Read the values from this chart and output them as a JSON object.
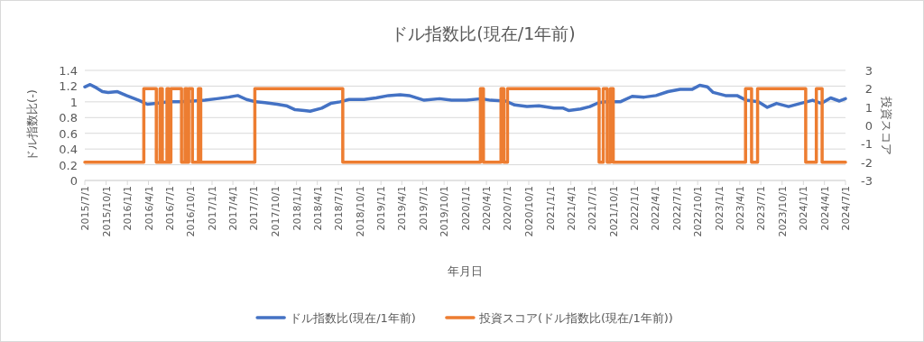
{
  "chart_data": {
    "type": "line",
    "title": "ドル指数比(現在/1年前)",
    "xlabel": "年月日",
    "ylabel": "ドル指数比(-)",
    "y2label": "投資スコア",
    "xlim": [
      "2015-07-01",
      "2024-07-01"
    ],
    "xticks": [
      {
        "value": "2015-07-01",
        "label": "2015/7/1"
      },
      {
        "value": "2015-10-01",
        "label": "2015/10/1"
      },
      {
        "value": "2016-01-01",
        "label": "2016/1/1"
      },
      {
        "value": "2016-04-01",
        "label": "2016/4/1"
      },
      {
        "value": "2016-07-01",
        "label": "2016/7/1"
      },
      {
        "value": "2016-10-01",
        "label": "2016/10/1"
      },
      {
        "value": "2017-01-01",
        "label": "2017/1/1"
      },
      {
        "value": "2017-04-01",
        "label": "2017/4/1"
      },
      {
        "value": "2017-07-01",
        "label": "2017/7/1"
      },
      {
        "value": "2017-10-01",
        "label": "2017/10/1"
      },
      {
        "value": "2018-01-01",
        "label": "2018/1/1"
      },
      {
        "value": "2018-04-01",
        "label": "2018/4/1"
      },
      {
        "value": "2018-07-01",
        "label": "2018/7/1"
      },
      {
        "value": "2018-10-01",
        "label": "2018/10/1"
      },
      {
        "value": "2019-01-01",
        "label": "2019/1/1"
      },
      {
        "value": "2019-04-01",
        "label": "2019/4/1"
      },
      {
        "value": "2019-07-01",
        "label": "2019/7/1"
      },
      {
        "value": "2019-10-01",
        "label": "2019/10/1"
      },
      {
        "value": "2020-01-01",
        "label": "2020/1/1"
      },
      {
        "value": "2020-04-01",
        "label": "2020/4/1"
      },
      {
        "value": "2020-07-01",
        "label": "2020/7/1"
      },
      {
        "value": "2020-10-01",
        "label": "2020/10/1"
      },
      {
        "value": "2021-01-01",
        "label": "2021/1/1"
      },
      {
        "value": "2021-04-01",
        "label": "2021/4/1"
      },
      {
        "value": "2021-07-01",
        "label": "2021/7/1"
      },
      {
        "value": "2021-10-01",
        "label": "2021/10/1"
      },
      {
        "value": "2022-01-01",
        "label": "2022/1/1"
      },
      {
        "value": "2022-04-01",
        "label": "2022/4/1"
      },
      {
        "value": "2022-07-01",
        "label": "2022/7/1"
      },
      {
        "value": "2022-10-01",
        "label": "2022/10/1"
      },
      {
        "value": "2023-01-01",
        "label": "2023/1/1"
      },
      {
        "value": "2023-04-01",
        "label": "2023/4/1"
      },
      {
        "value": "2023-07-01",
        "label": "2023/7/1"
      },
      {
        "value": "2023-10-01",
        "label": "2023/10/1"
      },
      {
        "value": "2024-01-01",
        "label": "2024/1/1"
      },
      {
        "value": "2024-04-01",
        "label": "2024/4/1"
      },
      {
        "value": "2024-07-01",
        "label": "2024/7/1"
      }
    ],
    "ylim": [
      0,
      1.4
    ],
    "yticks": [
      0,
      0.2,
      0.4,
      0.6,
      0.8,
      1,
      1.2,
      1.4
    ],
    "y2lim": [
      -3,
      3
    ],
    "y2ticks": [
      -3,
      -2,
      -1,
      0,
      1,
      2,
      3
    ],
    "grid": "y",
    "legend": "bottom",
    "series": [
      {
        "name": "ドル指数比(現在/1年前)",
        "color": "#4472c4",
        "x": [
          "2015-07-01",
          "2015-07-24",
          "2015-08-19",
          "2015-09-15",
          "2015-10-10",
          "2015-11-19",
          "2015-12-28",
          "2016-02-19",
          "2016-03-27",
          "2016-05-06",
          "2016-06-27",
          "2016-08-18",
          "2016-10-10",
          "2016-12-01",
          "2017-01-22",
          "2017-03-14",
          "2017-04-22",
          "2017-05-30",
          "2017-07-09",
          "2017-08-18",
          "2017-10-09",
          "2017-11-18",
          "2017-12-26",
          "2018-02-04",
          "2018-03-01",
          "2018-04-20",
          "2018-05-29",
          "2018-07-08",
          "2018-08-16",
          "2018-10-20",
          "2018-12-11",
          "2019-02-03",
          "2019-03-25",
          "2019-05-03",
          "2019-07-07",
          "2019-09-11",
          "2019-11-02",
          "2020-01-06",
          "2020-03-10",
          "2020-04-19",
          "2020-06-23",
          "2020-08-01",
          "2020-09-23",
          "2020-11-14",
          "2021-01-18",
          "2021-02-27",
          "2021-03-22",
          "2021-05-13",
          "2021-06-22",
          "2021-07-30",
          "2021-09-01",
          "2021-10-31",
          "2021-12-22",
          "2022-02-12",
          "2022-04-04",
          "2022-05-26",
          "2022-07-17",
          "2022-09-08",
          "2022-10-10",
          "2022-11-12",
          "2022-12-07",
          "2023-01-29",
          "2023-03-20",
          "2023-04-29",
          "2023-06-20",
          "2023-07-29",
          "2023-09-07",
          "2023-10-29",
          "2023-12-19",
          "2024-02-10",
          "2024-03-19",
          "2024-04-28",
          "2024-06-05",
          "2024-07-01"
        ],
        "values": [
          1.19,
          1.22,
          1.18,
          1.13,
          1.12,
          1.13,
          1.08,
          1.02,
          0.97,
          0.98,
          1.0,
          1.0,
          1.01,
          1.02,
          1.04,
          1.06,
          1.08,
          1.03,
          1.0,
          0.99,
          0.97,
          0.95,
          0.9,
          0.89,
          0.88,
          0.92,
          0.98,
          1.0,
          1.03,
          1.03,
          1.05,
          1.08,
          1.09,
          1.08,
          1.02,
          1.04,
          1.02,
          1.02,
          1.04,
          1.02,
          1.01,
          0.96,
          0.94,
          0.95,
          0.92,
          0.92,
          0.89,
          0.91,
          0.94,
          0.99,
          1.0,
          1.0,
          1.07,
          1.06,
          1.08,
          1.13,
          1.16,
          1.16,
          1.21,
          1.19,
          1.12,
          1.08,
          1.08,
          1.02,
          1.0,
          0.93,
          0.98,
          0.94,
          0.98,
          1.02,
          0.98,
          1.05,
          1.01,
          1.04
        ]
      },
      {
        "name": "投資スコア(ドル指数比(現在/1年前))",
        "color": "#ed7d31",
        "axis": "y2",
        "x": [
          "2015-07-01",
          "2016-03-12",
          "2016-03-12",
          "2016-05-05",
          "2016-05-05",
          "2016-05-21",
          "2016-05-21",
          "2016-05-31",
          "2016-05-31",
          "2016-06-20",
          "2016-06-20",
          "2016-06-28",
          "2016-06-28",
          "2016-07-07",
          "2016-07-07",
          "2016-08-22",
          "2016-08-22",
          "2016-09-06",
          "2016-09-06",
          "2016-09-15",
          "2016-09-15",
          "2016-09-22",
          "2016-09-22",
          "2016-10-08",
          "2016-10-08",
          "2016-11-03",
          "2016-11-03",
          "2016-11-13",
          "2016-11-13",
          "2017-07-05",
          "2017-07-05",
          "2018-07-20",
          "2018-07-20",
          "2020-03-06",
          "2020-03-06",
          "2020-03-19",
          "2020-03-19",
          "2020-06-03",
          "2020-06-03",
          "2020-06-15",
          "2020-06-15",
          "2020-07-01",
          "2020-07-01",
          "2021-08-01",
          "2021-08-01",
          "2021-08-19",
          "2021-08-19",
          "2021-09-05",
          "2021-09-05",
          "2021-09-19",
          "2021-09-19",
          "2021-10-01",
          "2021-10-01",
          "2023-04-26",
          "2023-04-26",
          "2023-05-22",
          "2023-05-22",
          "2023-06-17",
          "2023-06-17",
          "2024-01-11",
          "2024-01-11",
          "2024-02-26",
          "2024-02-26",
          "2024-03-22",
          "2024-03-22",
          "2024-07-01"
        ],
        "values": [
          -2,
          -2,
          2,
          2,
          -2,
          -2,
          2,
          2,
          -2,
          -2,
          2,
          2,
          -2,
          -2,
          2,
          2,
          -2,
          -2,
          2,
          2,
          -2,
          -2,
          2,
          2,
          -2,
          -2,
          2,
          2,
          -2,
          -2,
          2,
          2,
          -2,
          -2,
          2,
          2,
          -2,
          -2,
          2,
          2,
          -2,
          -2,
          2,
          2,
          -2,
          -2,
          2,
          2,
          -2,
          -2,
          2,
          2,
          -2,
          -2,
          2,
          2,
          -2,
          -2,
          2,
          2,
          -2,
          -2,
          2,
          2,
          -2,
          -2
        ]
      }
    ]
  }
}
